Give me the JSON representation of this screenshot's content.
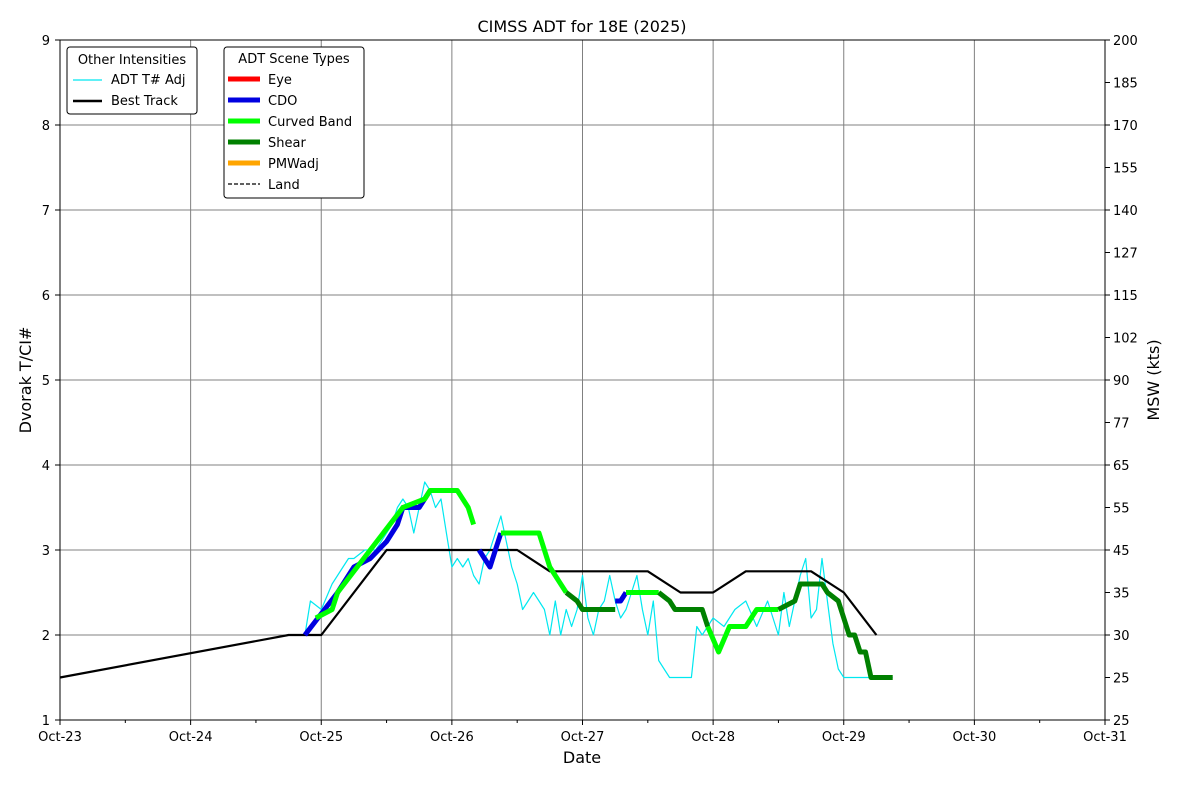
{
  "chart_data": {
    "type": "line",
    "title": "CIMSS ADT for 18E (2025)",
    "xlabel": "Date",
    "ylabel": "Dvorak T/CI#",
    "y2label": "MSW (kts)",
    "x_ticks": [
      "Oct-23",
      "Oct-24",
      "Oct-25",
      "Oct-26",
      "Oct-27",
      "Oct-28",
      "Oct-29",
      "Oct-30",
      "Oct-31"
    ],
    "xlim": [
      "2025-10-23 00:00",
      "2025-10-31 00:00"
    ],
    "ylim": [
      1,
      9
    ],
    "y_ticks": [
      "1",
      "2",
      "3",
      "4",
      "5",
      "6",
      "7",
      "8",
      "9"
    ],
    "y2_ticks": [
      {
        "t": 1,
        "label": "25"
      },
      {
        "t": 1.5,
        "label": "25"
      },
      {
        "t": 2,
        "label": "30"
      },
      {
        "t": 2.5,
        "label": "35"
      },
      {
        "t": 3,
        "label": "45"
      },
      {
        "t": 3.5,
        "label": "55"
      },
      {
        "t": 4,
        "label": "65"
      },
      {
        "t": 4.5,
        "label": "77"
      },
      {
        "t": 5,
        "label": "90"
      },
      {
        "t": 5.5,
        "label": "102"
      },
      {
        "t": 6,
        "label": "115"
      },
      {
        "t": 6.5,
        "label": "127"
      },
      {
        "t": 7,
        "label": "140"
      },
      {
        "t": 7.5,
        "label": "155"
      },
      {
        "t": 8,
        "label": "170"
      },
      {
        "t": 8.5,
        "label": "185"
      },
      {
        "t": 9,
        "label": "200"
      }
    ],
    "grid": true,
    "legend_other": {
      "title": "Other Intensities",
      "placement": "top-left",
      "entries": [
        {
          "label": "ADT T# Adj",
          "color": "#00e8f0",
          "style": "thin"
        },
        {
          "label": "Best Track",
          "color": "#000000",
          "style": "solid"
        }
      ]
    },
    "legend_scene": {
      "title": "ADT Scene Types",
      "entries": [
        {
          "label": "Eye",
          "color": "#ff0000",
          "style": "thick"
        },
        {
          "label": "CDO",
          "color": "#0000e0",
          "style": "thick"
        },
        {
          "label": "Curved Band",
          "color": "#00ff00",
          "style": "thick"
        },
        {
          "label": "Shear",
          "color": "#008000",
          "style": "thick"
        },
        {
          "label": "PMWadj",
          "color": "#ffa500",
          "style": "thick"
        },
        {
          "label": "Land",
          "color": "#000000",
          "style": "dashed"
        }
      ]
    },
    "series": [
      {
        "name": "Best Track",
        "color": "#000000",
        "x": [
          "2025-10-23 00:00",
          "2025-10-24 18:00",
          "2025-10-25 00:00",
          "2025-10-25 12:00",
          "2025-10-26 12:00",
          "2025-10-26 18:00",
          "2025-10-27 12:00",
          "2025-10-27 18:00",
          "2025-10-28 00:00",
          "2025-10-28 06:00",
          "2025-10-28 18:00",
          "2025-10-29 00:00",
          "2025-10-29 06:00"
        ],
        "y": [
          1.5,
          2.0,
          2.0,
          3.0,
          3.0,
          2.75,
          2.75,
          2.5,
          2.5,
          2.75,
          2.75,
          2.5,
          2.0
        ]
      },
      {
        "name": "ADT T# Adj",
        "color": "#00e8f0",
        "x": [
          "2025-10-24 21:00",
          "2025-10-24 22:00",
          "2025-10-25 00:00",
          "2025-10-25 02:00",
          "2025-10-25 04:00",
          "2025-10-25 05:00",
          "2025-10-25 06:00",
          "2025-10-25 08:00",
          "2025-10-25 10:00",
          "2025-10-25 12:00",
          "2025-10-25 13:00",
          "2025-10-25 14:00",
          "2025-10-25 15:00",
          "2025-10-25 16:00",
          "2025-10-25 17:00",
          "2025-10-25 18:00",
          "2025-10-25 19:00",
          "2025-10-25 20:00",
          "2025-10-25 21:00",
          "2025-10-25 22:00",
          "2025-10-25 23:00",
          "2025-10-26 00:00",
          "2025-10-26 01:00",
          "2025-10-26 02:00",
          "2025-10-26 03:00",
          "2025-10-26 04:00",
          "2025-10-26 05:00",
          "2025-10-26 06:00",
          "2025-10-26 07:00",
          "2025-10-26 08:00",
          "2025-10-26 09:00",
          "2025-10-26 10:00",
          "2025-10-26 11:00",
          "2025-10-26 12:00",
          "2025-10-26 13:00",
          "2025-10-26 14:00",
          "2025-10-26 15:00",
          "2025-10-26 16:00",
          "2025-10-26 17:00",
          "2025-10-26 18:00",
          "2025-10-26 19:00",
          "2025-10-26 20:00",
          "2025-10-26 21:00",
          "2025-10-26 22:00",
          "2025-10-26 23:00",
          "2025-10-27 00:00",
          "2025-10-27 01:00",
          "2025-10-27 02:00",
          "2025-10-27 03:00",
          "2025-10-27 04:00",
          "2025-10-27 05:00",
          "2025-10-27 06:00",
          "2025-10-27 07:00",
          "2025-10-27 08:00",
          "2025-10-27 09:00",
          "2025-10-27 10:00",
          "2025-10-27 11:00",
          "2025-10-27 12:00",
          "2025-10-27 13:00",
          "2025-10-27 14:00",
          "2025-10-27 15:00",
          "2025-10-27 16:00",
          "2025-10-27 18:00",
          "2025-10-27 20:00",
          "2025-10-27 21:00",
          "2025-10-27 22:00",
          "2025-10-28 00:00",
          "2025-10-28 02:00",
          "2025-10-28 04:00",
          "2025-10-28 06:00",
          "2025-10-28 08:00",
          "2025-10-28 10:00",
          "2025-10-28 12:00",
          "2025-10-28 13:00",
          "2025-10-28 14:00",
          "2025-10-28 15:00",
          "2025-10-28 16:00",
          "2025-10-28 17:00",
          "2025-10-28 18:00",
          "2025-10-28 19:00",
          "2025-10-28 20:00",
          "2025-10-28 21:00",
          "2025-10-28 22:00",
          "2025-10-28 23:00",
          "2025-10-29 00:00",
          "2025-10-29 02:00",
          "2025-10-29 04:00",
          "2025-10-29 06:00",
          "2025-10-29 08:00",
          "2025-10-29 09:00"
        ],
        "y": [
          2.0,
          2.4,
          2.3,
          2.6,
          2.8,
          2.9,
          2.9,
          3.0,
          3.0,
          3.2,
          3.3,
          3.5,
          3.6,
          3.5,
          3.2,
          3.5,
          3.8,
          3.7,
          3.5,
          3.6,
          3.2,
          2.8,
          2.9,
          2.8,
          2.9,
          2.7,
          2.6,
          2.9,
          3.0,
          3.2,
          3.4,
          3.1,
          2.8,
          2.6,
          2.3,
          2.4,
          2.5,
          2.4,
          2.3,
          2.0,
          2.4,
          2.0,
          2.3,
          2.1,
          2.3,
          2.7,
          2.2,
          2.0,
          2.3,
          2.4,
          2.7,
          2.4,
          2.2,
          2.3,
          2.5,
          2.7,
          2.3,
          2.0,
          2.4,
          1.7,
          1.6,
          1.5,
          1.5,
          1.5,
          2.1,
          2.0,
          2.2,
          2.1,
          2.3,
          2.4,
          2.1,
          2.4,
          2.0,
          2.5,
          2.1,
          2.4,
          2.7,
          2.9,
          2.2,
          2.3,
          2.9,
          2.4,
          1.9,
          1.6,
          1.5,
          1.5,
          1.5,
          1.5,
          1.5,
          1.5
        ]
      },
      {
        "name": "CDO",
        "color": "#0000e0",
        "x": [
          "2025-10-24 21:00",
          "2025-10-25 03:00",
          "2025-10-25 06:00",
          "2025-10-25 09:00",
          "2025-10-25 12:00",
          "2025-10-25 14:00",
          "2025-10-25 15:00",
          "2025-10-25 18:00",
          "2025-10-25 20:00"
        ],
        "y": [
          2.0,
          2.5,
          2.8,
          2.9,
          3.1,
          3.3,
          3.5,
          3.5,
          3.7
        ]
      },
      {
        "name": "Curved Band",
        "color": "#00ff00",
        "x": [
          "2025-10-24 23:00",
          "2025-10-25 02:00",
          "2025-10-25 03:00",
          "2025-10-25 15:00",
          "2025-10-25 19:00",
          "2025-10-25 20:00",
          "2025-10-26 01:00",
          "2025-10-26 03:00",
          "2025-10-26 04:00"
        ],
        "y": [
          2.2,
          2.3,
          2.5,
          3.5,
          3.6,
          3.7,
          3.7,
          3.5,
          3.3
        ]
      },
      {
        "name": "CDO",
        "color": "#0000e0",
        "x": [
          "2025-10-26 05:00",
          "2025-10-26 06:00",
          "2025-10-26 07:00",
          "2025-10-26 08:00",
          "2025-10-26 09:00"
        ],
        "y": [
          3.0,
          2.9,
          2.8,
          3.0,
          3.2
        ]
      },
      {
        "name": "Curved Band",
        "color": "#00ff00",
        "x": [
          "2025-10-26 09:00",
          "2025-10-26 16:00",
          "2025-10-26 17:00",
          "2025-10-26 18:00",
          "2025-10-26 20:00",
          "2025-10-26 21:00"
        ],
        "y": [
          3.2,
          3.2,
          3.0,
          2.8,
          2.6,
          2.5
        ]
      },
      {
        "name": "Shear",
        "color": "#008000",
        "x": [
          "2025-10-26 21:00",
          "2025-10-26 23:00",
          "2025-10-27 00:00",
          "2025-10-27 02:00",
          "2025-10-27 06:00"
        ],
        "y": [
          2.5,
          2.4,
          2.3,
          2.3,
          2.3
        ]
      },
      {
        "name": "CDO",
        "color": "#0000e0",
        "x": [
          "2025-10-27 06:00",
          "2025-10-27 07:00",
          "2025-10-27 08:00"
        ],
        "y": [
          2.4,
          2.4,
          2.5
        ]
      },
      {
        "name": "Curved Band",
        "color": "#00ff00",
        "x": [
          "2025-10-27 08:00",
          "2025-10-27 14:00"
        ],
        "y": [
          2.5,
          2.5
        ]
      },
      {
        "name": "Shear",
        "color": "#008000",
        "x": [
          "2025-10-27 14:00",
          "2025-10-27 16:00",
          "2025-10-27 17:00",
          "2025-10-27 22:00",
          "2025-10-27 23:00"
        ],
        "y": [
          2.5,
          2.4,
          2.3,
          2.3,
          2.1
        ]
      },
      {
        "name": "Curved Band",
        "color": "#00ff00",
        "x": [
          "2025-10-27 23:00",
          "2025-10-28 01:00",
          "2025-10-28 03:00",
          "2025-10-28 06:00",
          "2025-10-28 08:00",
          "2025-10-28 12:00"
        ],
        "y": [
          2.1,
          1.8,
          2.1,
          2.1,
          2.3,
          2.3
        ]
      },
      {
        "name": "Shear",
        "color": "#008000",
        "x": [
          "2025-10-28 12:00",
          "2025-10-28 15:00",
          "2025-10-28 16:00",
          "2025-10-28 18:00",
          "2025-10-28 20:00",
          "2025-10-28 21:00",
          "2025-10-28 23:00",
          "2025-10-29 01:00",
          "2025-10-29 02:00",
          "2025-10-29 03:00",
          "2025-10-29 04:00",
          "2025-10-29 05:00",
          "2025-10-29 06:00",
          "2025-10-29 09:00"
        ],
        "y": [
          2.3,
          2.4,
          2.6,
          2.6,
          2.6,
          2.5,
          2.4,
          2.0,
          2.0,
          1.8,
          1.8,
          1.5,
          1.5,
          1.5
        ]
      }
    ]
  }
}
